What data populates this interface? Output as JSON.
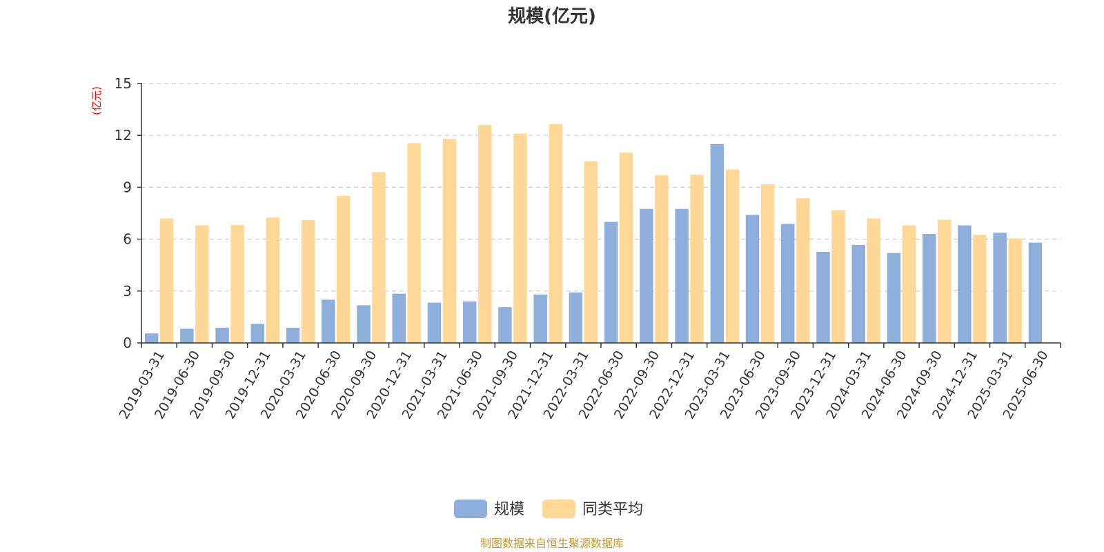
{
  "chart_data": {
    "type": "bar",
    "title": "规模(亿元)",
    "ylabel": "(亿元)",
    "ylim": [
      0,
      15
    ],
    "yticks": [
      0,
      3,
      6,
      9,
      12,
      15
    ],
    "grid": true,
    "legend_position": "bottom",
    "categories": [
      "2019-03-31",
      "2019-06-30",
      "2019-09-30",
      "2019-12-31",
      "2020-03-31",
      "2020-06-30",
      "2020-09-30",
      "2020-12-31",
      "2021-03-31",
      "2021-06-30",
      "2021-09-30",
      "2021-12-31",
      "2022-03-31",
      "2022-06-30",
      "2022-09-30",
      "2022-12-31",
      "2023-03-31",
      "2023-06-30",
      "2023-09-30",
      "2023-12-31",
      "2024-03-31",
      "2024-06-30",
      "2024-09-30",
      "2024-12-31",
      "2025-03-31",
      "2025-06-30"
    ],
    "series": [
      {
        "name": "规模",
        "color": "#8eaedb",
        "values": [
          0.55,
          0.82,
          0.88,
          1.1,
          0.88,
          2.5,
          2.18,
          2.85,
          2.33,
          2.4,
          2.07,
          2.8,
          2.92,
          7.0,
          7.75,
          7.75,
          11.5,
          7.4,
          6.88,
          5.27,
          5.67,
          5.2,
          6.3,
          6.8,
          6.37,
          5.8
        ]
      },
      {
        "name": "同类平均",
        "color": "#ffd898",
        "values": [
          7.2,
          6.8,
          6.82,
          7.25,
          7.1,
          8.5,
          9.88,
          11.55,
          11.8,
          12.6,
          12.1,
          12.65,
          10.5,
          11.0,
          9.7,
          9.72,
          10.03,
          9.17,
          8.37,
          7.68,
          7.2,
          6.8,
          7.12,
          6.25,
          6.05,
          null
        ]
      }
    ]
  },
  "legend": {
    "items": [
      {
        "label": "规模",
        "color": "#8eaedb"
      },
      {
        "label": "同类平均",
        "color": "#ffd898"
      }
    ]
  },
  "footer": {
    "source_text": "制图数据来自恒生聚源数据库"
  }
}
